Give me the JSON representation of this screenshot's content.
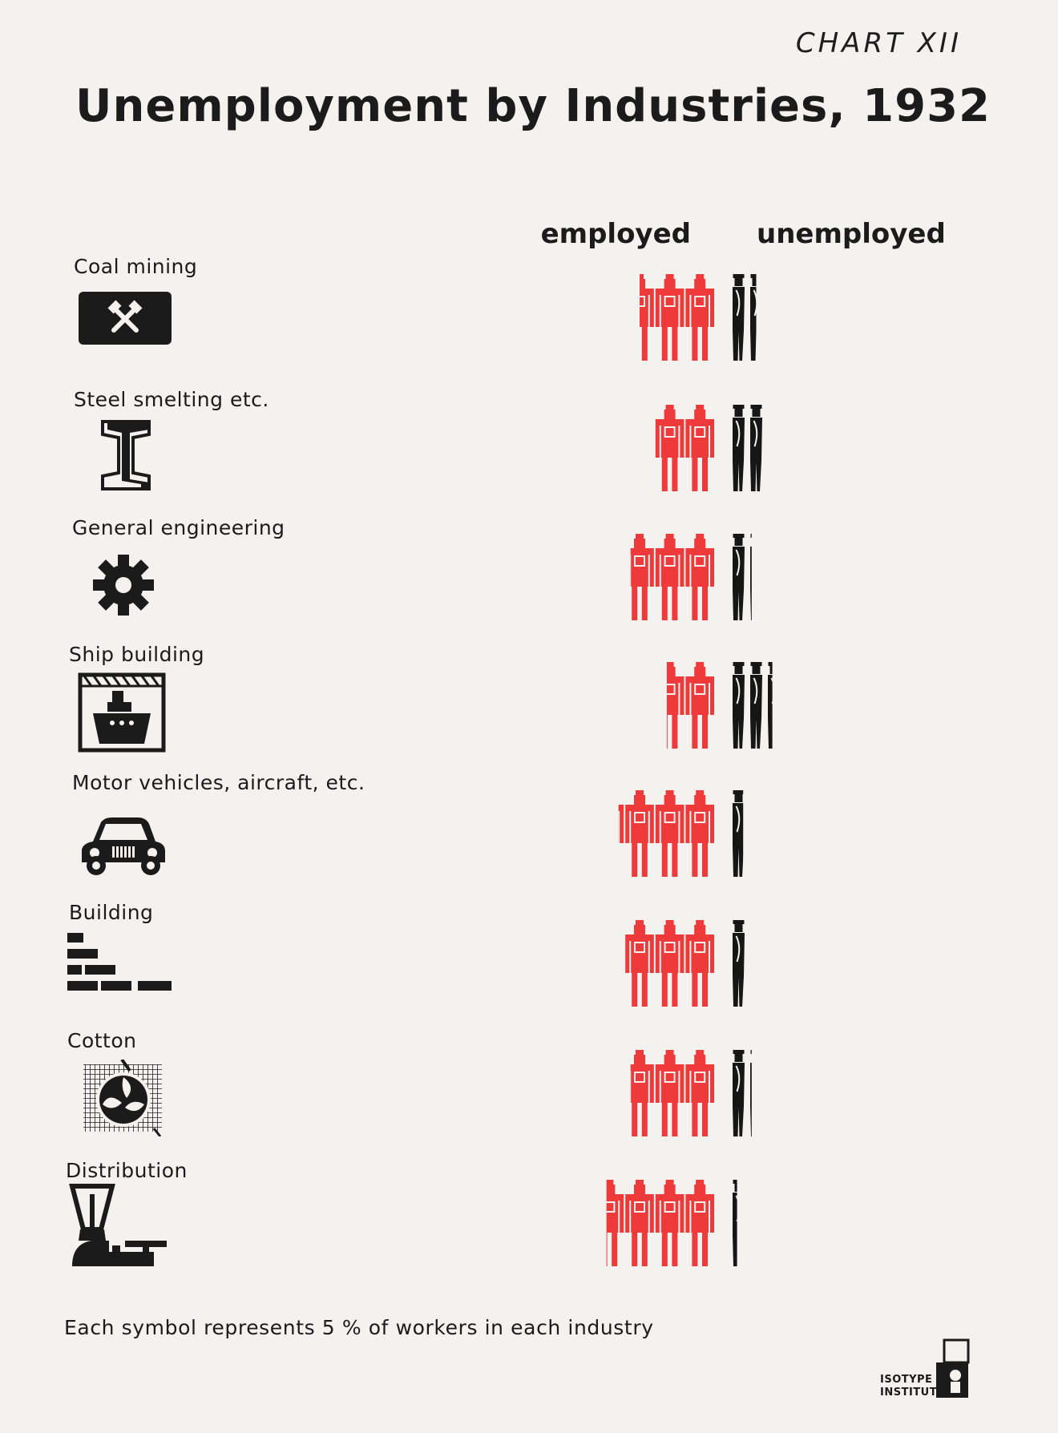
{
  "header": {
    "chart_number": "CHART XII",
    "title": "Unemployment by Industries, 1932"
  },
  "columns": {
    "employed": "employed",
    "unemployed": "unemployed"
  },
  "footnote": "Each symbol represents 5 % of workers in each industry",
  "logo": {
    "line1": "ISOTYPE",
    "line2": "INSTITUTE"
  },
  "colors": {
    "employed": "#ee3a3a",
    "unemployed": "#161616",
    "background": "#f3f2ef"
  },
  "icons": [
    "hammer-pick-icon",
    "steel-beam-icon",
    "gear-icon",
    "ship-icon",
    "car-icon",
    "bricks-icon",
    "cotton-boll-icon",
    "scale-icon"
  ],
  "chart_data": {
    "type": "pictogram",
    "unit_percent": 5,
    "categories": [
      "Coal mining",
      "Steel smelting etc.",
      "General engineering",
      "Ship building",
      "Motor vehicles, aircraft, etc.",
      "Building",
      "Cotton",
      "Distribution"
    ],
    "series": [
      {
        "name": "employed",
        "values": [
          12.5,
          10,
          14,
          8,
          16,
          15,
          14,
          18
        ]
      },
      {
        "name": "unemployed",
        "values": [
          7.5,
          10,
          6,
          12,
          4,
          5,
          6,
          2
        ]
      }
    ]
  }
}
